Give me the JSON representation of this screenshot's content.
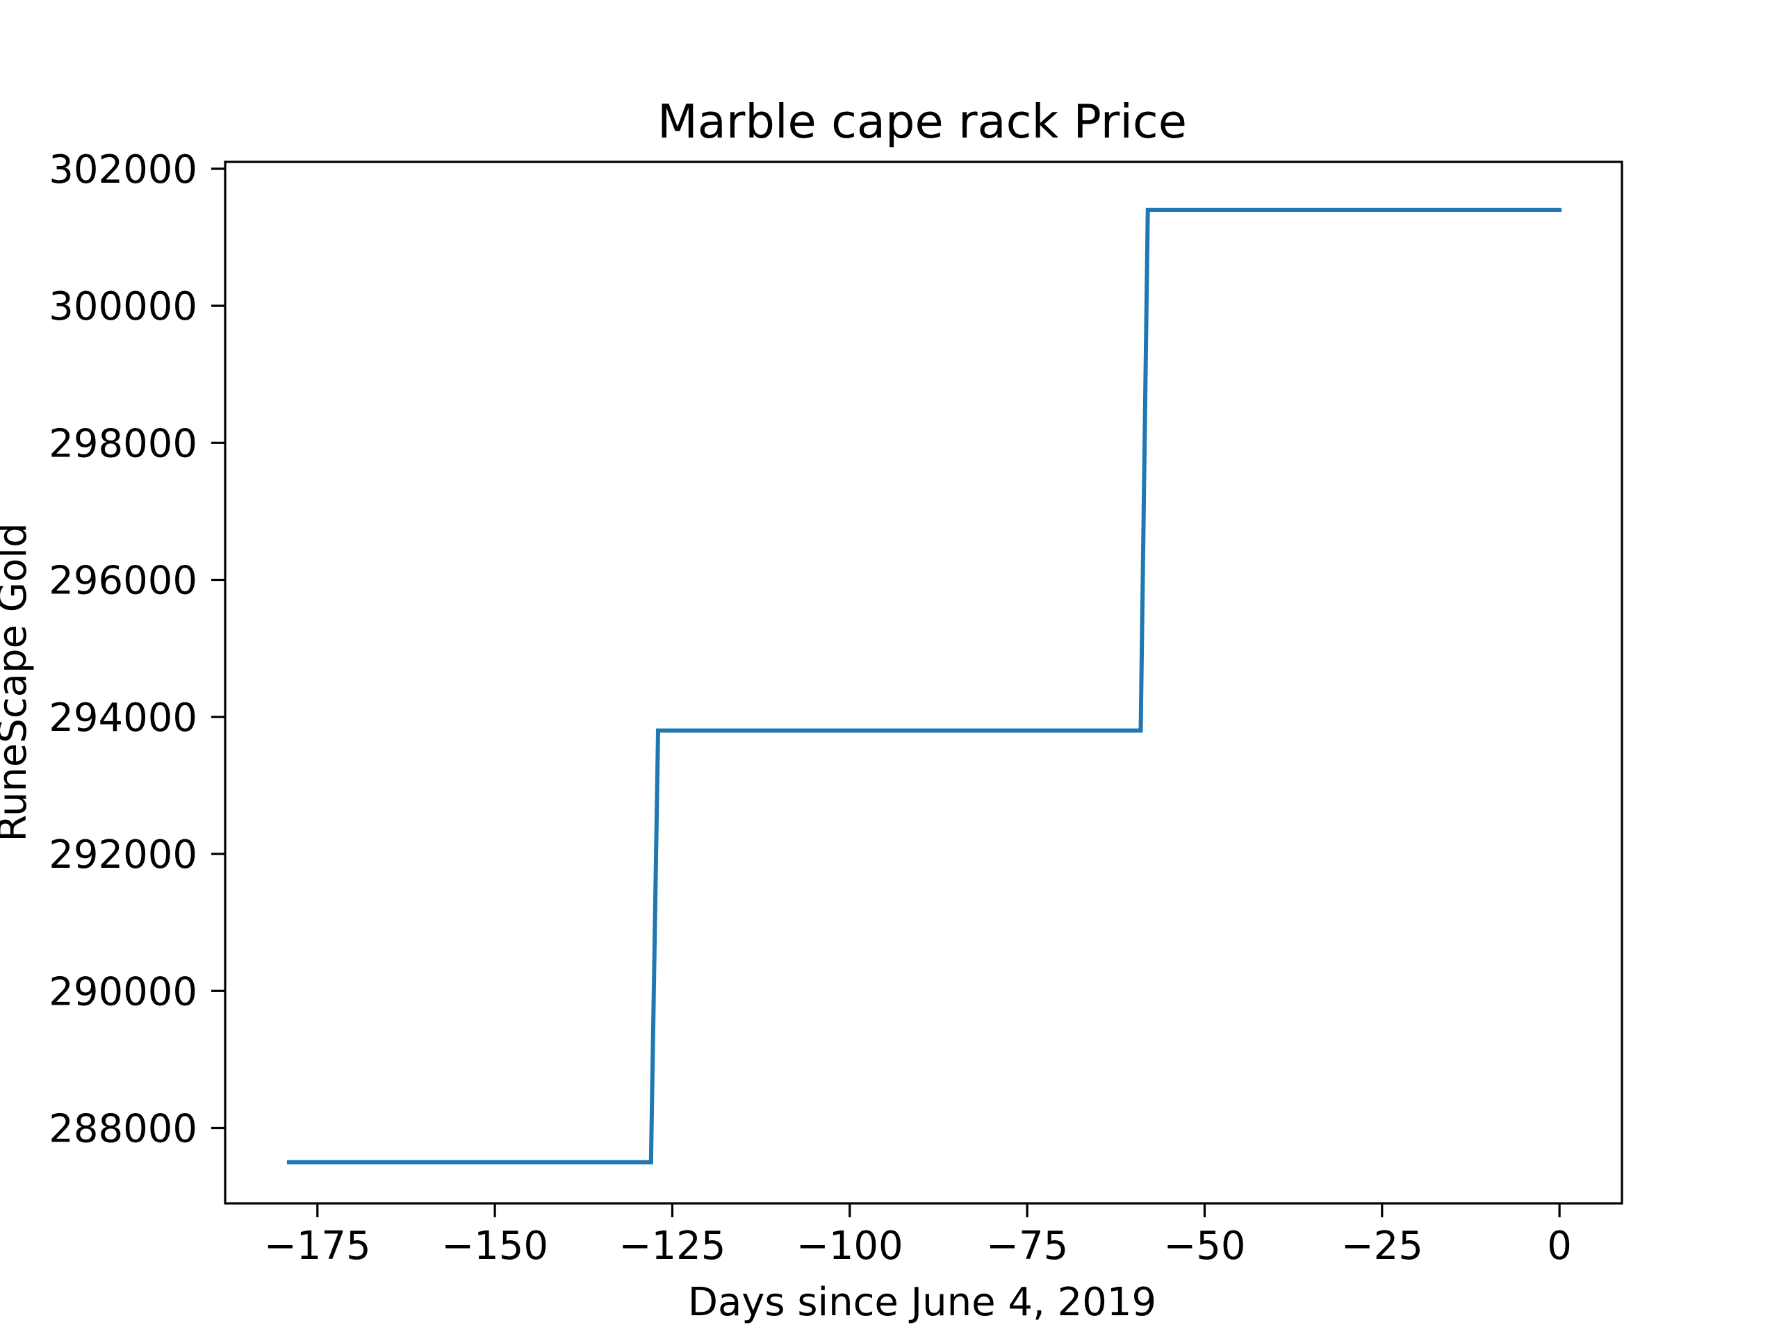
{
  "chart_data": {
    "type": "line",
    "title": "Marble cape rack Price",
    "xlabel": "Days since June 4, 2019",
    "ylabel": "RuneScape Gold",
    "xlim": [
      -188,
      8.8
    ],
    "ylim": [
      286900,
      302100
    ],
    "x_ticks": [
      -175,
      -150,
      -125,
      -100,
      -75,
      -50,
      -25,
      0
    ],
    "x_tick_labels": [
      "−175",
      "−150",
      "−125",
      "−100",
      "−75",
      "−50",
      "−25",
      "0"
    ],
    "y_ticks": [
      288000,
      290000,
      292000,
      294000,
      296000,
      298000,
      300000,
      302000
    ],
    "y_tick_labels": [
      "288000",
      "290000",
      "292000",
      "294000",
      "296000",
      "298000",
      "300000",
      "302000"
    ],
    "grid": false,
    "series": [
      {
        "color": "#1f77b4",
        "x": [
          -179,
          -128,
          -127,
          -59,
          -58,
          0
        ],
        "y": [
          287500,
          287500,
          293800,
          293800,
          301400,
          301400
        ]
      }
    ]
  }
}
